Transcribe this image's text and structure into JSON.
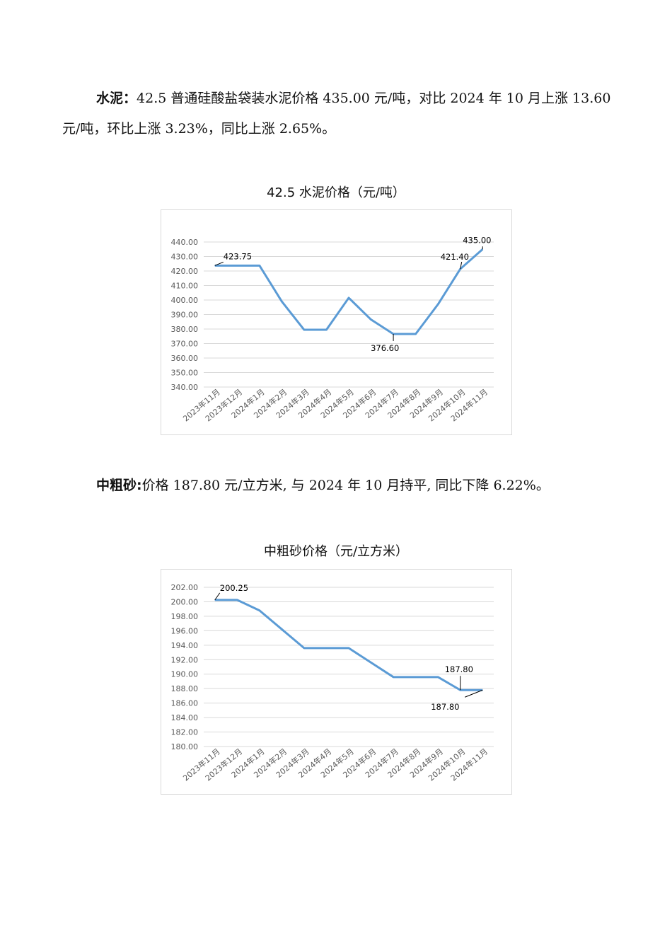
{
  "cement_paragraph": {
    "label": "水泥：",
    "text": "42.5 普通硅酸盐袋装水泥价格 435.00 元/吨，对比 2024 年 10 月上涨 13.60 元/吨，环比上涨 3.23%，同比上涨 2.65%。"
  },
  "sand_paragraph": {
    "label": "中粗砂:",
    "text": "价格 187.80 元/立方米, 与 2024 年 10 月持平, 同比下降 6.22%。"
  },
  "chart_data": [
    {
      "type": "line",
      "title": "42.5 水泥价格（元/吨）",
      "categories": [
        "2023年11月",
        "2023年12月",
        "2024年1月",
        "2024年2月",
        "2024年3月",
        "2024年4月",
        "2024年5月",
        "2024年6月",
        "2024年7月",
        "2024年8月",
        "2024年9月",
        "2024年10月",
        "2024年11月"
      ],
      "series": [
        {
          "values": [
            423.75,
            423.75,
            423.75,
            399.0,
            379.5,
            379.5,
            401.5,
            386.5,
            376.6,
            376.6,
            397.0,
            421.4,
            435.0
          ]
        }
      ],
      "ylim": [
        340,
        440
      ],
      "yticks": [
        "340.00",
        "350.00",
        "360.00",
        "370.00",
        "380.00",
        "390.00",
        "400.00",
        "410.00",
        "420.00",
        "430.00",
        "440.00"
      ],
      "annotations": [
        {
          "index": 0,
          "text": "423.75"
        },
        {
          "index": 8,
          "text": "376.60"
        },
        {
          "index": 11,
          "text": "421.40"
        },
        {
          "index": 12,
          "text": "435.00"
        }
      ],
      "color": "#5b9bd5",
      "grid": true
    },
    {
      "type": "line",
      "title": "中粗砂价格（元/立方米）",
      "categories": [
        "2023年11月",
        "2023年12月",
        "2024年1月",
        "2024年2月",
        "2024年3月",
        "2024年4月",
        "2024年5月",
        "2024年6月",
        "2024年7月",
        "2024年8月",
        "2024年9月",
        "2024年10月",
        "2024年11月"
      ],
      "series": [
        {
          "values": [
            200.25,
            200.25,
            198.8,
            196.2,
            193.6,
            193.6,
            193.6,
            191.6,
            189.6,
            189.6,
            189.6,
            187.8,
            187.8
          ]
        }
      ],
      "ylim": [
        180,
        202
      ],
      "yticks": [
        "180.00",
        "182.00",
        "184.00",
        "186.00",
        "188.00",
        "190.00",
        "192.00",
        "194.00",
        "196.00",
        "198.00",
        "200.00",
        "202.00"
      ],
      "annotations": [
        {
          "index": 0,
          "text": "200.25"
        },
        {
          "index": 11,
          "text": "187.80"
        },
        {
          "index": 12,
          "text": "187.80"
        }
      ],
      "color": "#5b9bd5",
      "grid": true
    }
  ]
}
